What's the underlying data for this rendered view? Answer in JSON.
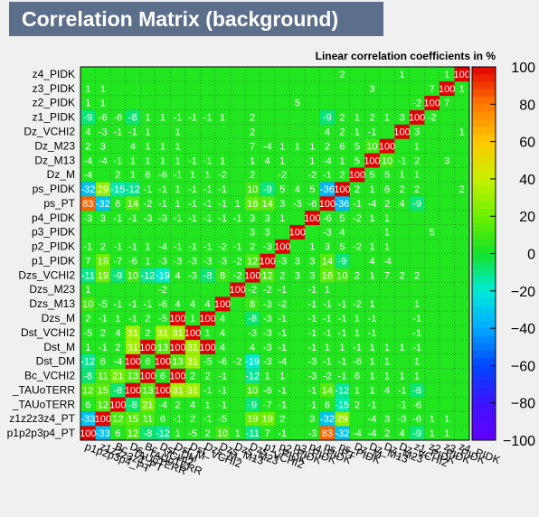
{
  "window_title": "Correlation Matrix (background)",
  "chart_data": {
    "type": "heatmap",
    "title": "Linear correlation coefficients in %",
    "variables": [
      "p1p2p3p4_PT",
      "z1z2z3z4_PT",
      "Bc_TAUoTERR",
      "Ds_TAUoTERR",
      "Bc_VCHI2",
      "Dst_DM",
      "Dst_M",
      "Dst_VCHI2",
      "Dzs_M",
      "Dzs_M13",
      "Dzs_M23",
      "Dzs_VCHI2",
      "p1_PIDK",
      "p2_PIDK",
      "p3_PIDK",
      "p4_PIDK",
      "ps_PT",
      "ps_PIDK",
      "Dz_M",
      "Dz_M13",
      "Dz_M23",
      "Dz_VCHI2",
      "z1_PIDK",
      "z2_PIDK",
      "z3_PIDK",
      "z4_PIDK"
    ],
    "x_tick_labels": [
      "p1p2p3p4_PT",
      "z1z2z3z4_PT",
      "Bc_TAUoTERR",
      "Ds_TAUoTERR",
      "Bc_VCHI2",
      "Dst_DM",
      "Dst_M",
      "Dst_VCHI2",
      "Dzs_M",
      "Dzs_M13",
      "Dzs_M23",
      "Dzs_VCHI2",
      "p1_PIDK",
      "p2_PIDK",
      "p3_PIDK",
      "p4_PIDK",
      "ps_PT",
      "ps_PIDK",
      "Dz_M",
      "Dz_M13",
      "Dz_M23",
      "Dz_VCHI2",
      "z1_PIDK",
      "z2_PIDK",
      "z3_PIDK",
      "z4_PIDK"
    ],
    "y_tick_labels": [
      "p1p2p3p4_PT",
      "z1z2z3z4_PT",
      "_TAUoTERR",
      "_TAUoTERR",
      "Bc_VCHI2",
      "Dst_DM",
      "Dst_M",
      "Dst_VCHI2",
      "Dzs_M",
      "Dzs_M13",
      "Dzs_M23",
      "Dzs_VCHI2",
      "p1_PIDK",
      "p2_PIDK",
      "p3_PIDK",
      "p4_PIDK",
      "ps_PT",
      "ps_PIDK",
      "Dz_M",
      "Dz_M13",
      "Dz_M23",
      "Dz_VCHI2",
      "z1_PIDK",
      "z2_PIDK",
      "z3_PIDK",
      "z4_PIDK"
    ],
    "matrix": [
      [
        100,
        -33,
        6,
        12,
        -8,
        -12,
        1,
        -5,
        2,
        10,
        1,
        -11,
        7,
        -1,
        0,
        -3,
        83,
        -32,
        -4,
        -4,
        2,
        4,
        -9,
        1,
        1,
        0
      ],
      [
        -33,
        100,
        12,
        15,
        11,
        6,
        -1,
        2,
        -1,
        -5,
        0,
        19,
        19,
        2,
        0,
        3,
        -32,
        29,
        0,
        -4,
        3,
        -3,
        -6,
        1,
        1,
        0
      ],
      [
        6,
        12,
        100,
        -8,
        21,
        -4,
        2,
        4,
        1,
        -1,
        0,
        -9,
        -7,
        -1,
        0,
        -1,
        6,
        -15,
        2,
        -1,
        0,
        -1,
        -6,
        0,
        0,
        0
      ],
      [
        12,
        15,
        -8,
        100,
        13,
        100,
        31,
        31,
        -1,
        -1,
        0,
        10,
        -6,
        -1,
        0,
        -1,
        14,
        -12,
        1,
        1,
        4,
        -1,
        -8,
        0,
        0,
        0
      ],
      [
        -8,
        11,
        21,
        13,
        100,
        6,
        100,
        2,
        2,
        -1,
        0,
        -12,
        1,
        1,
        0,
        -3,
        -2,
        -1,
        6,
        1,
        1,
        1,
        1,
        0,
        0,
        0
      ],
      [
        -12,
        6,
        -4,
        100,
        6,
        100,
        13,
        31,
        -5,
        -6,
        -2,
        -19,
        -3,
        -4,
        0,
        -3,
        -1,
        -1,
        -6,
        1,
        1,
        0,
        1,
        0,
        0,
        0
      ],
      [
        1,
        -1,
        2,
        31,
        100,
        13,
        100,
        31,
        100,
        4,
        0,
        4,
        -3,
        -1,
        0,
        -1,
        1,
        1,
        -1,
        1,
        1,
        1,
        -1,
        0,
        0,
        0
      ],
      [
        -5,
        2,
        4,
        31,
        2,
        31,
        31,
        100,
        1,
        4,
        0,
        -3,
        -3,
        -1,
        0,
        -1,
        -1,
        -1,
        1,
        -1,
        0,
        0,
        -1,
        0,
        0,
        0
      ],
      [
        2,
        -1,
        1,
        -1,
        2,
        -5,
        100,
        1,
        100,
        4,
        0,
        -8,
        -3,
        -1,
        0,
        -1,
        -1,
        -1,
        1,
        -1,
        0,
        0,
        -1,
        0,
        0,
        0
      ],
      [
        10,
        -5,
        -1,
        -1,
        -1,
        -6,
        4,
        4,
        4,
        100,
        0,
        8,
        -3,
        -2,
        0,
        -1,
        -1,
        -1,
        -2,
        1,
        0,
        0,
        1,
        0,
        0,
        0
      ],
      [
        1,
        0,
        0,
        0,
        0,
        -2,
        0,
        0,
        0,
        0,
        100,
        -2,
        -2,
        -1,
        0,
        -1,
        1,
        0,
        0,
        0,
        0,
        0,
        0,
        0,
        0,
        0
      ],
      [
        -11,
        19,
        -9,
        10,
        -12,
        -19,
        4,
        -3,
        -8,
        8,
        -2,
        100,
        12,
        2,
        3,
        3,
        16,
        10,
        2,
        1,
        7,
        2,
        2,
        0,
        0,
        0
      ],
      [
        7,
        19,
        -7,
        -6,
        1,
        -3,
        -3,
        -3,
        -3,
        -3,
        -2,
        12,
        100,
        -3,
        3,
        3,
        14,
        -9,
        0,
        4,
        -4,
        0,
        0,
        0,
        0,
        0
      ],
      [
        -1,
        2,
        -1,
        -1,
        1,
        -4,
        -1,
        -1,
        -1,
        -2,
        -1,
        2,
        -3,
        100,
        0,
        1,
        3,
        5,
        -2,
        1,
        1,
        0,
        0,
        0,
        0,
        0
      ],
      [
        0,
        0,
        0,
        0,
        0,
        0,
        0,
        0,
        0,
        0,
        0,
        3,
        3,
        0,
        100,
        0,
        -3,
        4,
        0,
        0,
        1,
        0,
        0,
        5,
        0,
        0
      ],
      [
        -3,
        3,
        -1,
        -1,
        -3,
        -3,
        -1,
        -1,
        -1,
        -1,
        -1,
        3,
        3,
        1,
        0,
        100,
        -6,
        5,
        -2,
        1,
        1,
        0,
        0,
        0,
        0,
        0
      ],
      [
        83,
        -32,
        6,
        14,
        -2,
        -1,
        1,
        -1,
        -1,
        -1,
        1,
        16,
        14,
        3,
        -3,
        -6,
        100,
        -36,
        -1,
        -4,
        2,
        4,
        -9,
        0,
        0,
        0
      ],
      [
        -32,
        29,
        -15,
        -12,
        -1,
        -1,
        1,
        -1,
        -1,
        -1,
        0,
        10,
        -9,
        5,
        4,
        5,
        -36,
        100,
        2,
        1,
        6,
        2,
        2,
        0,
        0,
        2
      ],
      [
        -4,
        0,
        2,
        1,
        6,
        -6,
        -1,
        1,
        1,
        -2,
        0,
        2,
        0,
        -2,
        0,
        -2,
        -1,
        2,
        100,
        5,
        5,
        1,
        1,
        0,
        0,
        0
      ],
      [
        -4,
        -4,
        -1,
        1,
        1,
        1,
        1,
        -1,
        -1,
        1,
        0,
        1,
        4,
        1,
        0,
        1,
        -4,
        1,
        5,
        100,
        10,
        -1,
        2,
        0,
        3,
        0
      ],
      [
        2,
        3,
        0,
        4,
        1,
        1,
        1,
        0,
        0,
        0,
        0,
        7,
        -4,
        1,
        1,
        1,
        2,
        6,
        5,
        10,
        100,
        0,
        1,
        0,
        0,
        0
      ],
      [
        4,
        -3,
        -1,
        -1,
        1,
        0,
        1,
        0,
        0,
        0,
        0,
        2,
        0,
        0,
        0,
        0,
        4,
        2,
        1,
        -1,
        0,
        100,
        3,
        0,
        0,
        1
      ],
      [
        -9,
        -6,
        -6,
        -8,
        1,
        1,
        -1,
        -1,
        -1,
        1,
        0,
        2,
        0,
        0,
        0,
        0,
        -9,
        2,
        1,
        2,
        1,
        3,
        100,
        -2,
        0,
        0
      ],
      [
        1,
        1,
        0,
        0,
        0,
        0,
        0,
        0,
        0,
        0,
        0,
        0,
        0,
        0,
        5,
        0,
        0,
        0,
        0,
        0,
        0,
        0,
        -2,
        100,
        7,
        0
      ],
      [
        1,
        1,
        0,
        0,
        0,
        0,
        0,
        0,
        0,
        0,
        0,
        0,
        0,
        0,
        0,
        0,
        0,
        0,
        0,
        3,
        0,
        0,
        0,
        7,
        100,
        1
      ],
      [
        0,
        0,
        0,
        0,
        0,
        0,
        0,
        0,
        0,
        0,
        0,
        0,
        0,
        0,
        0,
        0,
        0,
        2,
        0,
        0,
        0,
        1,
        0,
        0,
        1,
        100
      ]
    ],
    "zlim": [
      -100,
      100
    ],
    "colorbar_ticks": [
      "100",
      "80",
      "60",
      "40",
      "20",
      "0",
      "−20",
      "−40",
      "−60",
      "−80",
      "−100"
    ],
    "grid": true
  }
}
